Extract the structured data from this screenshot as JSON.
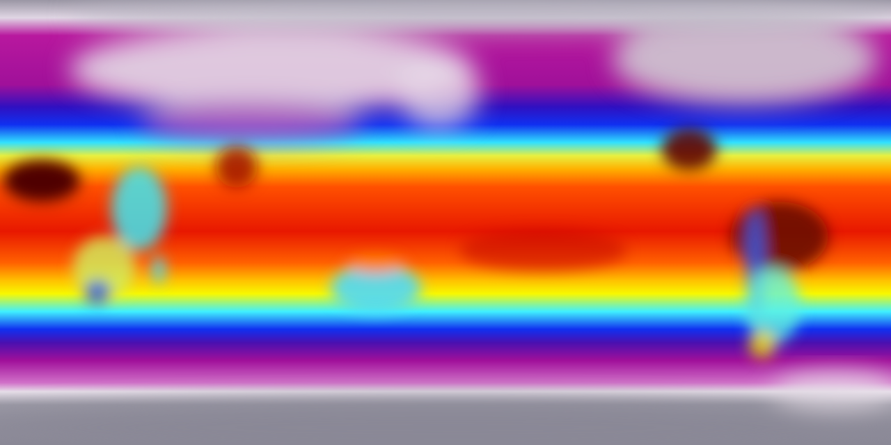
{
  "map": {
    "projection": "equirectangular",
    "colormap": {
      "polar_gray": "#8a8a96",
      "ice_white": "#e8e0ea",
      "magenta": "#b0119a",
      "purple": "#6a10a0",
      "blue": "#1020e0",
      "cyan": "#30e8ff",
      "yellow": "#f8f000",
      "orange": "#ff8000",
      "red": "#e81000",
      "dark_red": "#400000"
    }
  }
}
